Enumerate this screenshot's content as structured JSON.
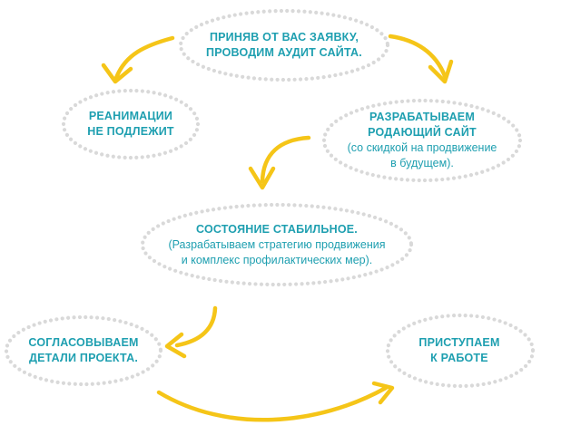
{
  "colors": {
    "text": "#1e9fb0",
    "arrow": "#f5c518",
    "dots": "#d9d9d9"
  },
  "steps": {
    "audit": {
      "title": [
        "ПРИНЯВ ОТ ВАС ЗАЯВКУ,",
        "ПРОВОДИМ АУДИТ САЙТА."
      ]
    },
    "no_reanimation": {
      "title": [
        "РЕАНИМАЦИИ",
        "НЕ ПОДЛЕЖИТ"
      ]
    },
    "develop_site": {
      "title": [
        "РАЗРАБАТЫВАЕМ",
        "РОДАЮЩИЙ САЙТ"
      ],
      "note": [
        "(со скидкой на продвижение",
        "в будущем)."
      ]
    },
    "stable": {
      "title": [
        "СОСТОЯНИЕ СТАБИЛЬНОЕ."
      ],
      "note": [
        "(Разрабатываем стратегию продвижения",
        "и комплекс профилактических мер)."
      ]
    },
    "agree": {
      "title": [
        "СОГЛАСОВЫВАЕМ",
        "ДЕТАЛИ ПРОЕКТА."
      ]
    },
    "start": {
      "title": [
        "ПРИСТУПАЕМ",
        "К РАБОТЕ"
      ]
    }
  }
}
